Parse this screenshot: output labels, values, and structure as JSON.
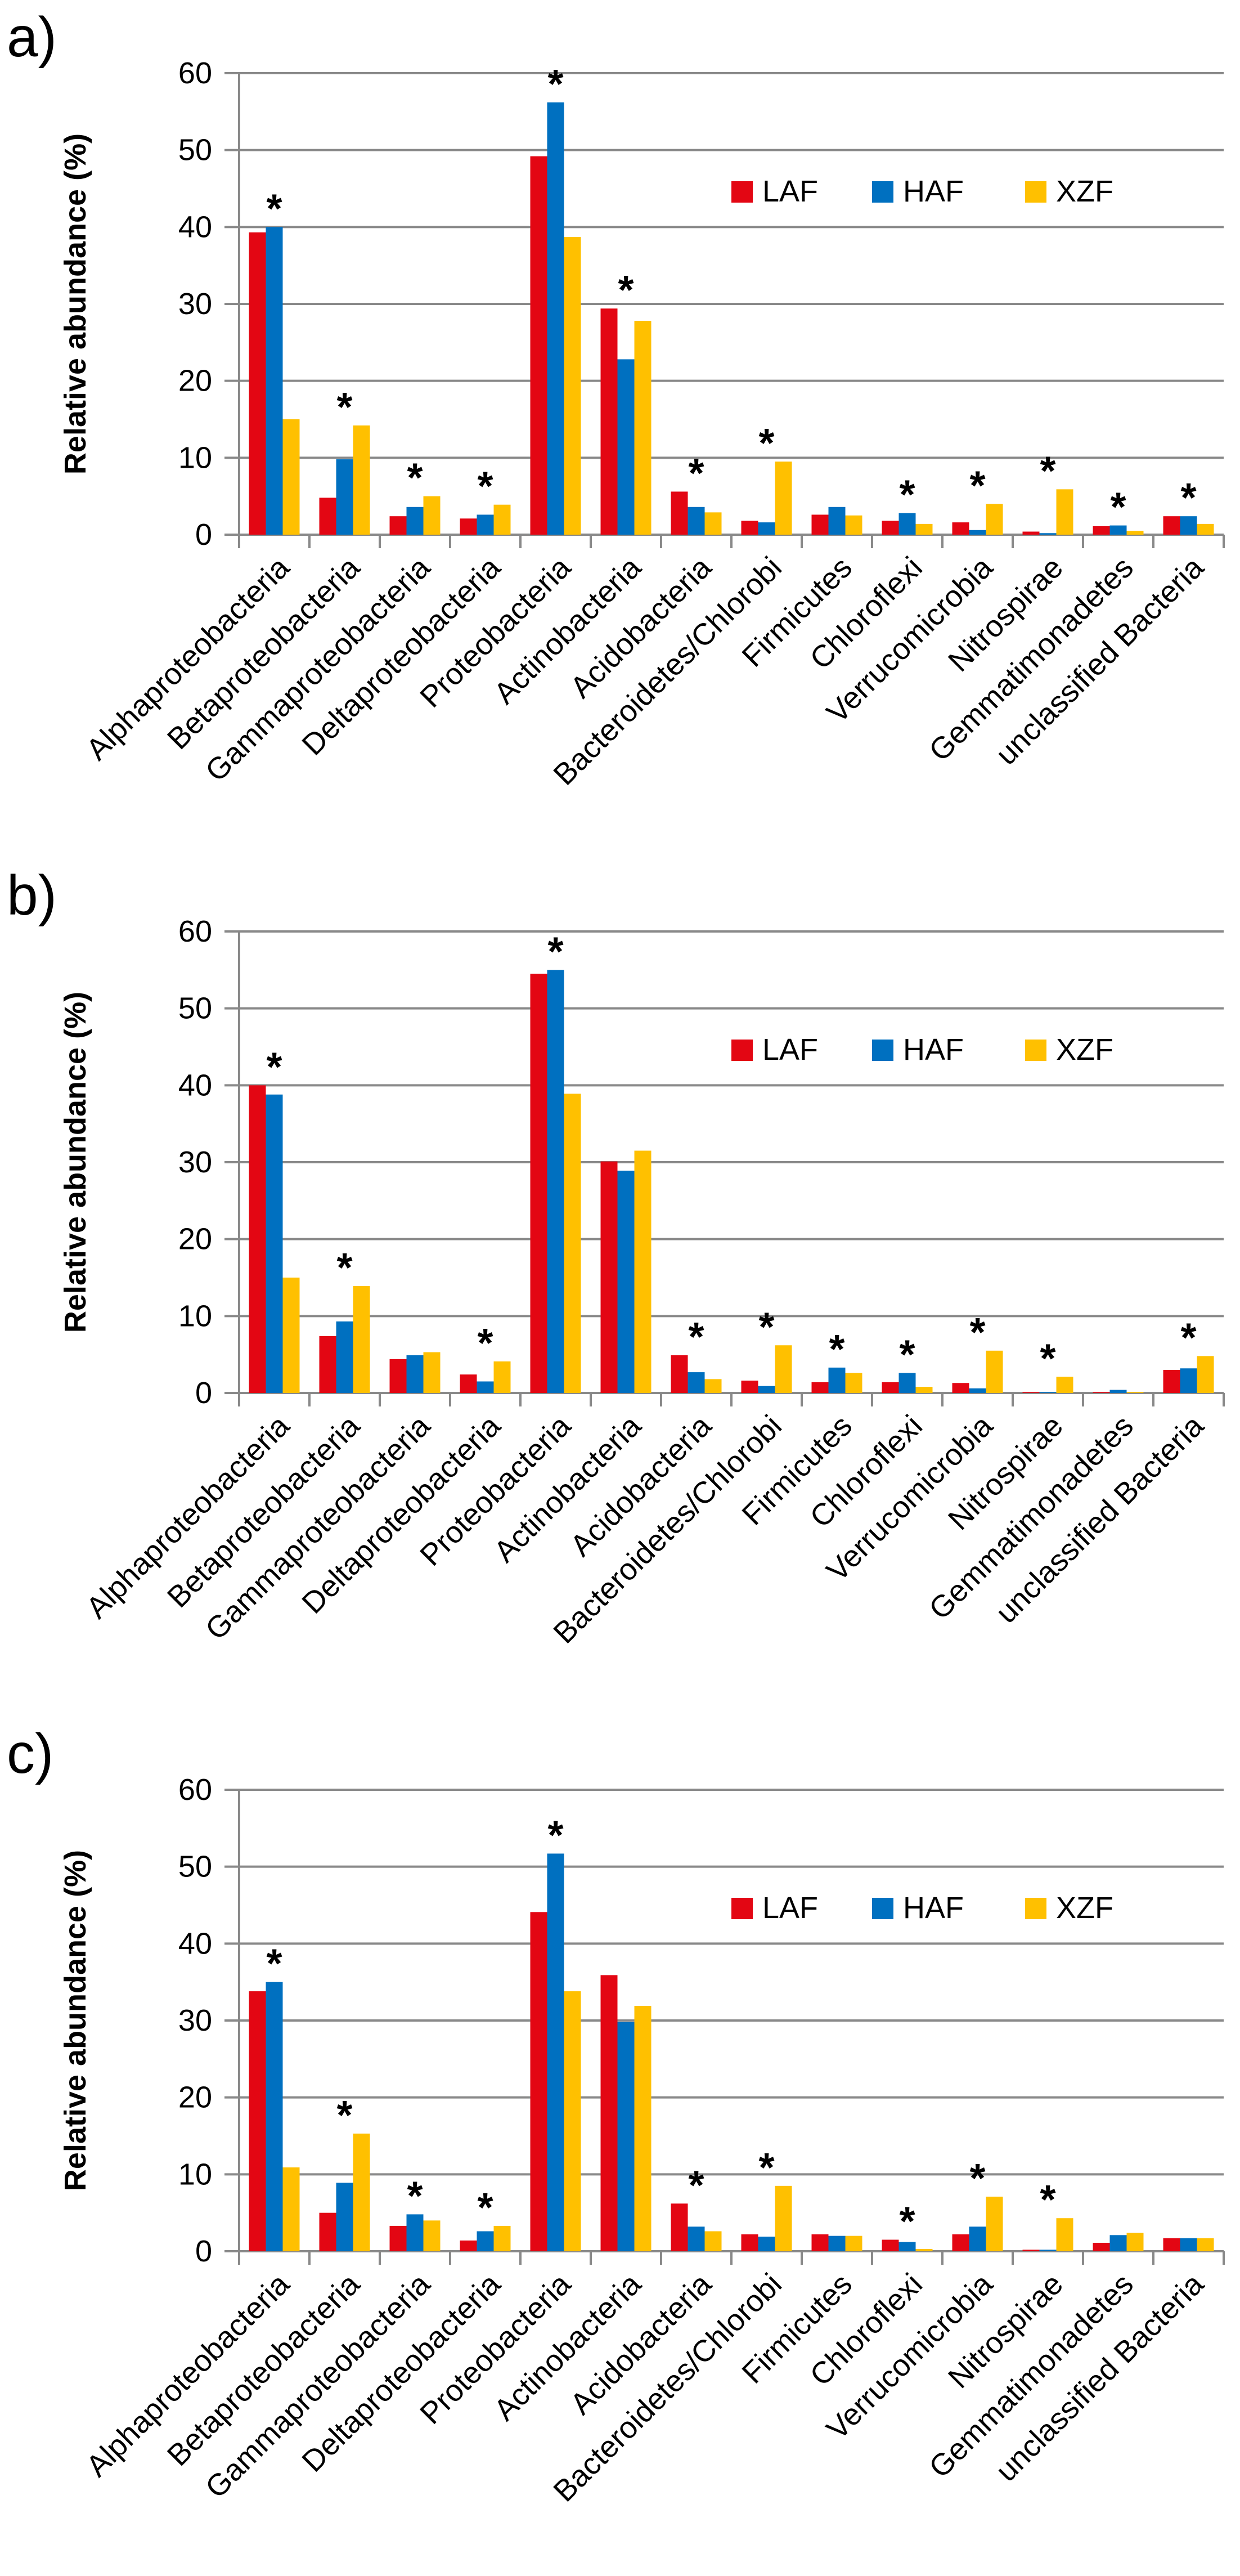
{
  "figure": {
    "panels": [
      "a)",
      "b)",
      "c)"
    ]
  },
  "colors": {
    "LAF": "#e30613",
    "HAF": "#0070c0",
    "XZF": "#ffc000",
    "axis": "#898989",
    "grid": "#898989",
    "text": "#000000"
  },
  "chart_data": [
    {
      "panel_label": "a)",
      "type": "bar",
      "ylabel": "Relative abundance (%)",
      "ylim": [
        0,
        60
      ],
      "yticks": [
        "0",
        "10",
        "20",
        "30",
        "40",
        "50",
        "60"
      ],
      "legend_position": "top-right",
      "categories": [
        "Alphaproteobacteria",
        "Betaproteobacteria",
        "Gammaproteobacteria",
        "Deltaproteobacteria",
        "Proteobacteria",
        "Actinobacteria",
        "Acidobacteria",
        "Bacteroidetes/Chlorobi",
        "Firmicutes",
        "Chloroflexi",
        "Verrucomicrobia",
        "Nitrospirae",
        "Gemmatimonadetes",
        "unclassified Bacteria"
      ],
      "series": [
        {
          "name": "LAF",
          "values": [
            39.3,
            4.8,
            2.4,
            2.1,
            49.2,
            29.4,
            5.6,
            1.8,
            2.6,
            1.8,
            1.6,
            0.4,
            1.1,
            2.4
          ]
        },
        {
          "name": "HAF",
          "values": [
            40.0,
            9.8,
            3.6,
            2.6,
            56.2,
            22.8,
            3.6,
            1.6,
            3.6,
            2.8,
            0.6,
            0.2,
            1.2,
            2.4
          ]
        },
        {
          "name": "XZF",
          "values": [
            15.0,
            14.2,
            5.0,
            3.9,
            38.7,
            27.8,
            2.9,
            9.5,
            2.5,
            1.4,
            4.0,
            5.9,
            0.5,
            1.4
          ]
        }
      ],
      "significance_marker": "*",
      "significant": [
        true,
        true,
        true,
        true,
        true,
        true,
        true,
        true,
        false,
        true,
        true,
        true,
        true,
        true
      ]
    },
    {
      "panel_label": "b)",
      "type": "bar",
      "ylabel": "Relative abundance (%)",
      "ylim": [
        0,
        60
      ],
      "yticks": [
        "0",
        "10",
        "20",
        "30",
        "40",
        "50",
        "60"
      ],
      "legend_position": "top-right",
      "categories": [
        "Alphaproteobacteria",
        "Betaproteobacteria",
        "Gammaproteobacteria",
        "Deltaproteobacteria",
        "Proteobacteria",
        "Actinobacteria",
        "Acidobacteria",
        "Bacteroidetes/Chlorobi",
        "Firmicutes",
        "Chloroflexi",
        "Verrucomicrobia",
        "Nitrospirae",
        "Gemmatimonadetes",
        "unclassified Bacteria"
      ],
      "series": [
        {
          "name": "LAF",
          "values": [
            40.0,
            7.4,
            4.4,
            2.4,
            54.5,
            30.1,
            4.9,
            1.6,
            1.4,
            1.4,
            1.3,
            0.1,
            0.1,
            3.0
          ]
        },
        {
          "name": "HAF",
          "values": [
            38.8,
            9.3,
            4.9,
            1.5,
            55.0,
            28.9,
            2.7,
            0.9,
            3.3,
            2.6,
            0.6,
            0.1,
            0.4,
            3.2
          ]
        },
        {
          "name": "XZF",
          "values": [
            15.0,
            13.9,
            5.3,
            4.1,
            38.9,
            31.5,
            1.8,
            6.2,
            2.6,
            0.8,
            5.5,
            2.1,
            0.1,
            4.8
          ]
        }
      ],
      "significance_marker": "*",
      "significant": [
        true,
        true,
        false,
        true,
        true,
        false,
        true,
        true,
        true,
        true,
        true,
        true,
        false,
        true
      ]
    },
    {
      "panel_label": "c)",
      "type": "bar",
      "ylabel": "Relative abundance (%)",
      "ylim": [
        0,
        60
      ],
      "yticks": [
        "0",
        "10",
        "20",
        "30",
        "40",
        "50",
        "60"
      ],
      "legend_position": "top-right",
      "categories": [
        "Alphaproteobacteria",
        "Betaproteobacteria",
        "Gammaproteobacteria",
        "Deltaproteobacteria",
        "Proteobacteria",
        "Actinobacteria",
        "Acidobacteria",
        "Bacteroidetes/Chlorobi",
        "Firmicutes",
        "Chloroflexi",
        "Verrucomicrobia",
        "Nitrospirae",
        "Gemmatimonadetes",
        "unclassified Bacteria"
      ],
      "series": [
        {
          "name": "LAF",
          "values": [
            33.8,
            5.0,
            3.3,
            1.4,
            44.1,
            35.9,
            6.2,
            2.2,
            2.2,
            1.5,
            2.2,
            0.2,
            1.1,
            1.7
          ]
        },
        {
          "name": "HAF",
          "values": [
            35.0,
            8.9,
            4.8,
            2.6,
            51.7,
            29.8,
            3.2,
            1.9,
            2.0,
            1.2,
            3.2,
            0.2,
            2.1,
            1.7
          ]
        },
        {
          "name": "XZF",
          "values": [
            10.9,
            15.3,
            4.0,
            3.3,
            33.8,
            31.9,
            2.6,
            8.5,
            2.0,
            0.3,
            7.1,
            4.3,
            2.4,
            1.7
          ]
        }
      ],
      "significance_marker": "*",
      "significant": [
        true,
        true,
        true,
        true,
        true,
        false,
        true,
        true,
        false,
        true,
        true,
        true,
        false,
        false
      ]
    }
  ]
}
